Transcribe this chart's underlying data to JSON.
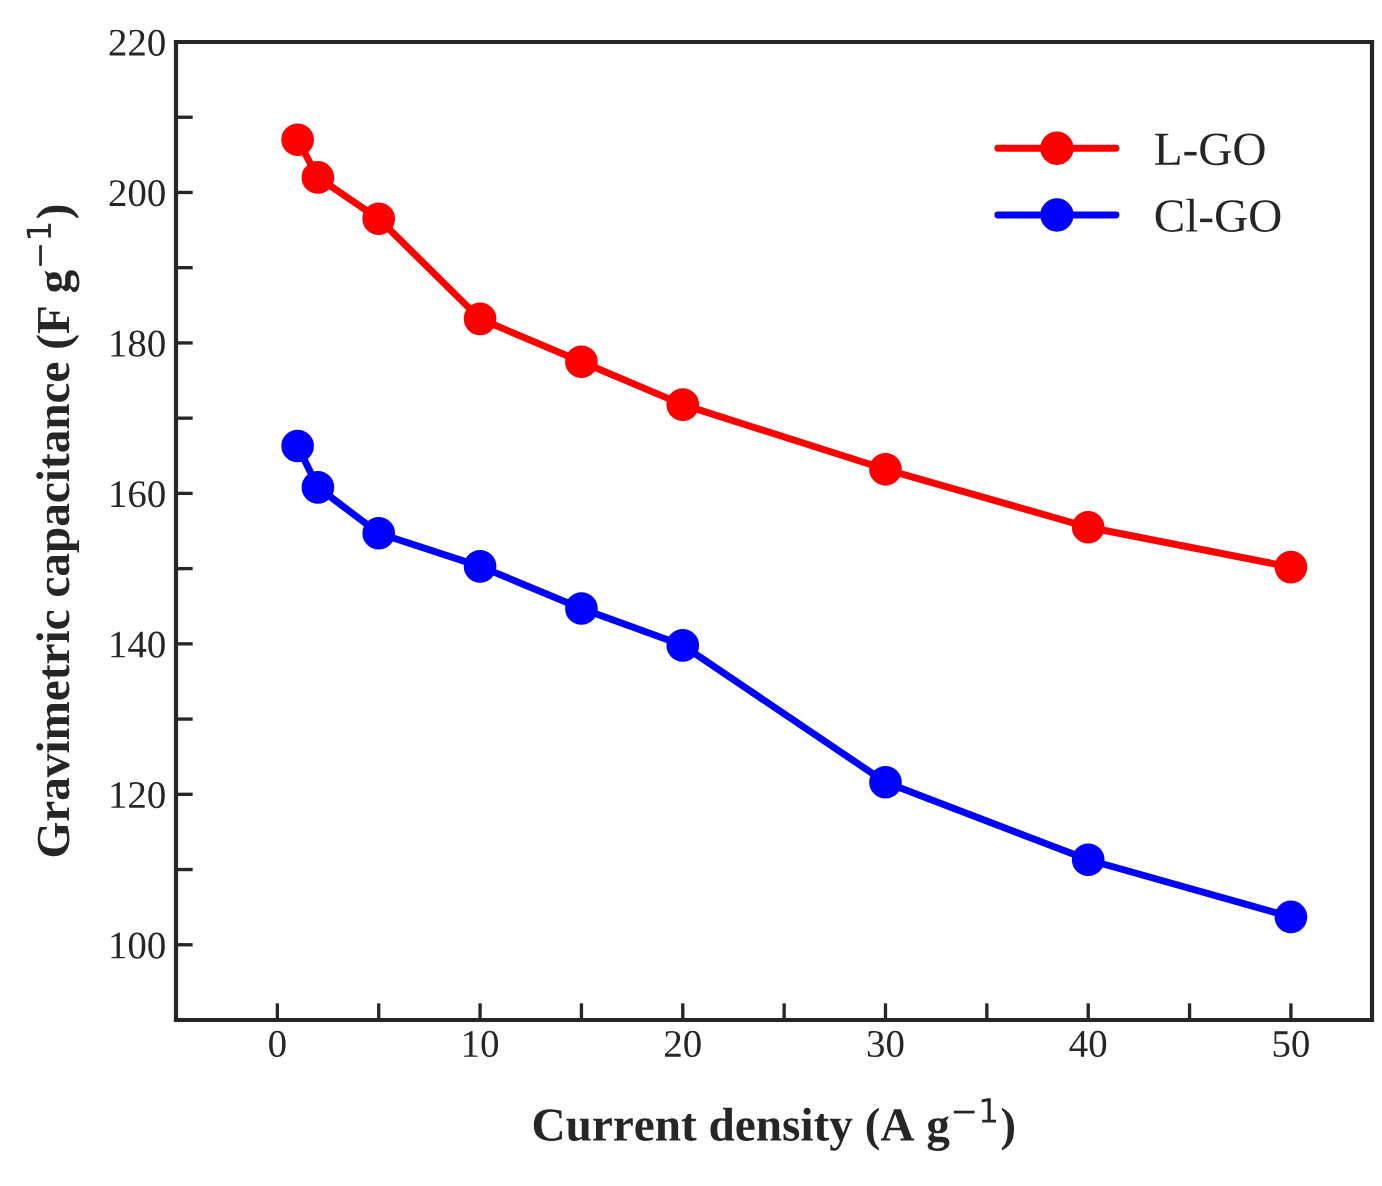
{
  "chart_data": {
    "type": "line",
    "xlabel": "Current density (A g$^{−1}$)",
    "ylabel": "Gravimetric capacitance (F g$^{−1}$)",
    "x": [
      1,
      2,
      5,
      10,
      15,
      20,
      30,
      40,
      50
    ],
    "series": [
      {
        "name": "L-GO",
        "color": "#ff0000",
        "values": [
          207,
          202,
          196.5,
          183.2,
          177.5,
          171.8,
          163.2,
          155.5,
          150.2
        ]
      },
      {
        "name": "Cl-GO",
        "color": "#0000ff",
        "values": [
          166.3,
          160.8,
          154.7,
          150.3,
          144.7,
          139.8,
          121.6,
          111.3,
          103.7
        ]
      }
    ],
    "xlim": [
      -5,
      54
    ],
    "ylim": [
      90,
      220
    ],
    "xticks": [
      0,
      {
        "value": 5,
        "label": null
      },
      10,
      {
        "value": 15,
        "label": null
      },
      20,
      {
        "value": 25,
        "label": null
      },
      30,
      {
        "value": 35,
        "label": null
      },
      40,
      {
        "value": 45,
        "label": null
      },
      50
    ],
    "yticks": [
      100,
      {
        "value": 110,
        "label": null
      },
      120,
      {
        "value": 130,
        "label": null
      },
      140,
      {
        "value": 150,
        "label": null
      },
      160,
      {
        "value": 170,
        "label": null
      },
      180,
      {
        "value": 190,
        "label": null
      },
      200,
      {
        "value": 210,
        "label": null
      },
      220
    ],
    "marker": "circle",
    "line_style": "solid",
    "legend": "top right",
    "grid": false
  }
}
